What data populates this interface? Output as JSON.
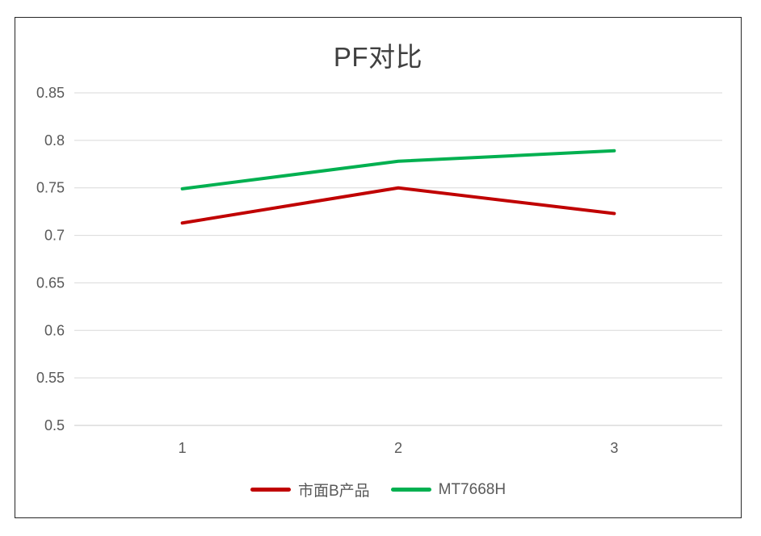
{
  "chart_data": {
    "type": "line",
    "title": "PF对比",
    "categories": [
      "1",
      "2",
      "3"
    ],
    "series": [
      {
        "name": "市面B产品",
        "color": "#C00000",
        "values": [
          0.713,
          0.75,
          0.723
        ]
      },
      {
        "name": "MT7668H",
        "color": "#00B050",
        "values": [
          0.749,
          0.778,
          0.789
        ]
      }
    ],
    "ylim": [
      0.5,
      0.85
    ],
    "ytick_step": 0.05,
    "ytick_labels": [
      "0.85",
      "0.8",
      "0.75",
      "0.7",
      "0.65",
      "0.6",
      "0.55",
      "0.5"
    ],
    "grid": "horizontal",
    "legend_position": "bottom",
    "styles": {
      "gridline_color": "#D9D9D9",
      "axis_line_color": "#C9C9C9",
      "tick_label_color": "#595959",
      "title_color": "#404040",
      "legend_label_color": "#595959",
      "frame_border_color": "#262626",
      "series_line_width": 4,
      "background": "#FFFFFF"
    }
  }
}
